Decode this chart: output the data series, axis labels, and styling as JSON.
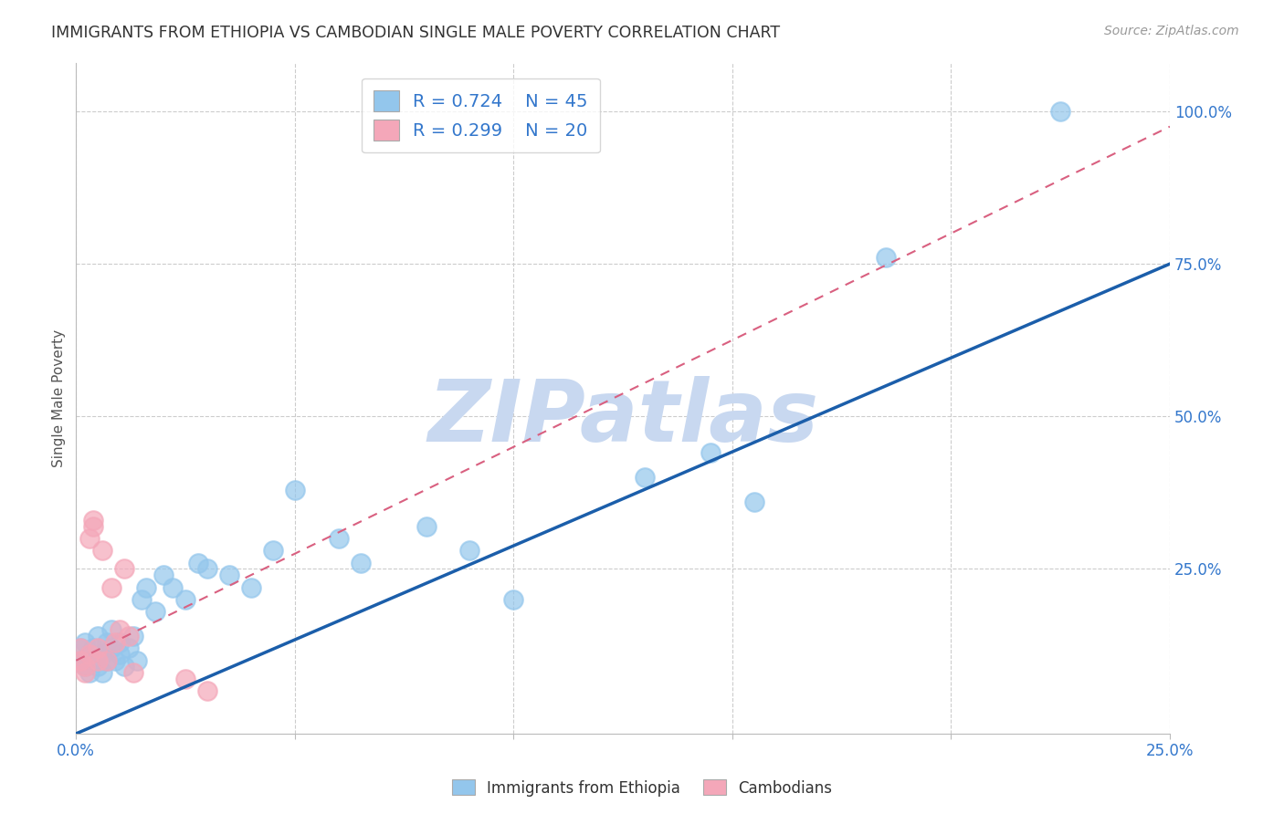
{
  "title": "IMMIGRANTS FROM ETHIOPIA VS CAMBODIAN SINGLE MALE POVERTY CORRELATION CHART",
  "source": "Source: ZipAtlas.com",
  "xlabel_ticks": [
    0.0,
    0.05,
    0.1,
    0.15,
    0.2,
    0.25
  ],
  "xlabel_labels": [
    "0.0%",
    "",
    "",
    "",
    "",
    "25.0%"
  ],
  "ylabel_ticks": [
    0.25,
    0.5,
    0.75,
    1.0
  ],
  "ylabel_labels": [
    "25.0%",
    "50.0%",
    "75.0%",
    "100.0%"
  ],
  "ylabel_label": "Single Male Poverty",
  "xlim": [
    0.0,
    0.25
  ],
  "ylim": [
    -0.02,
    1.08
  ],
  "blue_R": 0.724,
  "blue_N": 45,
  "pink_R": 0.299,
  "pink_N": 20,
  "blue_color": "#93C6EC",
  "pink_color": "#F4A7B9",
  "blue_line_color": "#1B5EAA",
  "pink_line_color": "#D96080",
  "blue_line_intercept": -0.02,
  "blue_line_slope": 3.08,
  "pink_line_intercept": 0.1,
  "pink_line_slope": 3.5,
  "watermark": "ZIPatlas",
  "watermark_color": "#C8D8F0",
  "blue_scatter_x": [
    0.001,
    0.001,
    0.002,
    0.002,
    0.003,
    0.003,
    0.004,
    0.004,
    0.005,
    0.005,
    0.006,
    0.006,
    0.007,
    0.007,
    0.008,
    0.008,
    0.009,
    0.01,
    0.01,
    0.011,
    0.012,
    0.013,
    0.014,
    0.015,
    0.016,
    0.018,
    0.02,
    0.022,
    0.025,
    0.028,
    0.03,
    0.035,
    0.04,
    0.045,
    0.05,
    0.06,
    0.065,
    0.08,
    0.09,
    0.1,
    0.13,
    0.145,
    0.155,
    0.185,
    0.225
  ],
  "blue_scatter_y": [
    0.12,
    0.1,
    0.09,
    0.13,
    0.08,
    0.11,
    0.1,
    0.12,
    0.09,
    0.14,
    0.11,
    0.08,
    0.13,
    0.1,
    0.12,
    0.15,
    0.1,
    0.11,
    0.13,
    0.09,
    0.12,
    0.14,
    0.1,
    0.2,
    0.22,
    0.18,
    0.24,
    0.22,
    0.2,
    0.26,
    0.25,
    0.24,
    0.22,
    0.28,
    0.38,
    0.3,
    0.26,
    0.32,
    0.28,
    0.2,
    0.4,
    0.44,
    0.36,
    0.76,
    1.0
  ],
  "pink_scatter_x": [
    0.001,
    0.001,
    0.002,
    0.002,
    0.003,
    0.003,
    0.004,
    0.004,
    0.005,
    0.005,
    0.006,
    0.007,
    0.008,
    0.009,
    0.01,
    0.011,
    0.012,
    0.013,
    0.025,
    0.03
  ],
  "pink_scatter_y": [
    0.1,
    0.12,
    0.08,
    0.09,
    0.11,
    0.3,
    0.32,
    0.33,
    0.12,
    0.1,
    0.28,
    0.1,
    0.22,
    0.13,
    0.15,
    0.25,
    0.14,
    0.08,
    0.07,
    0.05
  ],
  "legend_label_blue": "Immigrants from Ethiopia",
  "legend_label_pink": "Cambodians"
}
